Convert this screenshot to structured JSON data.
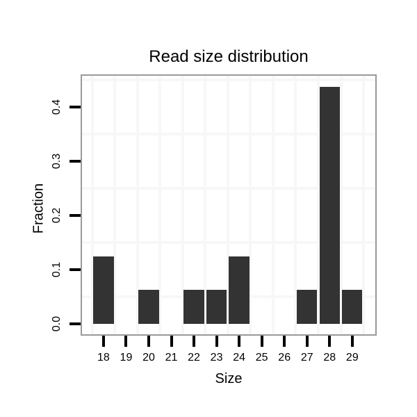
{
  "chart_data": {
    "type": "bar",
    "title": "Read size distribution",
    "xlabel": "Size",
    "ylabel": "Fraction",
    "categories": [
      "18",
      "19",
      "20",
      "21",
      "22",
      "23",
      "24",
      "25",
      "26",
      "27",
      "28",
      "29"
    ],
    "x_values": [
      18,
      19,
      20,
      21,
      22,
      23,
      24,
      25,
      26,
      27,
      28,
      29
    ],
    "values": [
      0.125,
      0,
      0.0625,
      0,
      0.0625,
      0.0625,
      0.125,
      0,
      0,
      0.0625,
      0.4375,
      0.0625
    ],
    "bar_width": 0.9,
    "y_ticks": {
      "values": [
        0,
        0.1,
        0.2,
        0.3,
        0.4
      ],
      "labels": [
        "0.0",
        "0.1",
        "0.2",
        "0.3",
        "0.4"
      ]
    },
    "minor_gridlines_x": [
      17.5,
      18.5,
      19.5,
      20.5,
      21.5,
      22.5,
      23.5,
      24.5,
      25.5,
      26.5,
      27.5,
      28.5,
      29.5
    ],
    "minor_gridlines_y": [
      0.05,
      0.15,
      0.25,
      0.35,
      0.45
    ],
    "xlim": [
      17.05,
      30.02
    ],
    "ylim": [
      -0.019,
      0.458
    ],
    "grid": "minor-only",
    "legend": "none",
    "colors": {
      "bar": "#333333",
      "grid": "#f7f7f7",
      "panel_border": "#999999",
      "tick": "#000000",
      "text": "#000000",
      "background": "#ffffff"
    }
  }
}
